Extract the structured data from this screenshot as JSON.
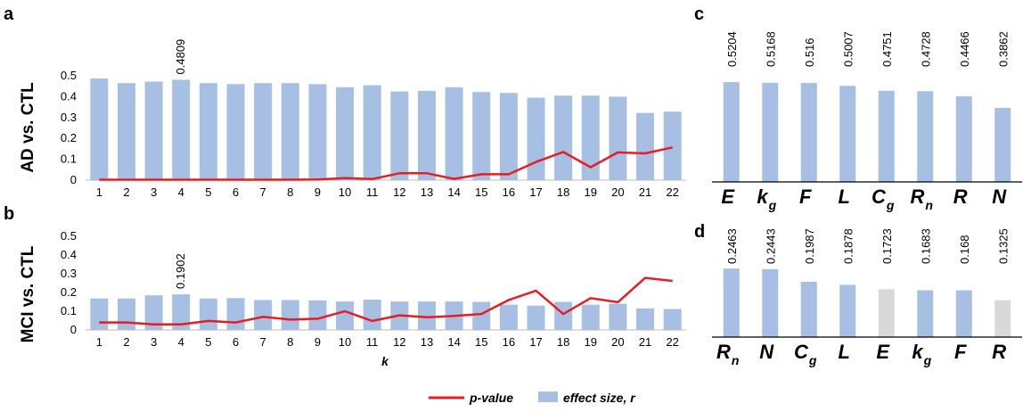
{
  "panels": {
    "a": {
      "letter": "a",
      "ylabel": "AD vs. CTL"
    },
    "b": {
      "letter": "b",
      "ylabel": "MCI vs. CTL"
    },
    "c": {
      "letter": "c"
    },
    "d": {
      "letter": "d"
    }
  },
  "legend": {
    "pvalue": "p-value",
    "effect": "effect size, r"
  },
  "colors": {
    "bar": "#a7bfe3",
    "bar_gray": "#d9d9d9",
    "line": "#e31e24",
    "axis": "#000000"
  },
  "chart_data": [
    {
      "panel": "a",
      "type": "bar",
      "ylabel": "AD vs. CTL",
      "xlabel": "k",
      "ylim": [
        0,
        0.5
      ],
      "yticks": [
        0,
        0.1,
        0.2,
        0.3,
        0.4,
        0.5
      ],
      "categories": [
        "1",
        "2",
        "3",
        "4",
        "5",
        "6",
        "7",
        "8",
        "9",
        "10",
        "11",
        "12",
        "13",
        "14",
        "15",
        "16",
        "17",
        "18",
        "19",
        "20",
        "21",
        "22"
      ],
      "series": [
        {
          "name": "effect size, r",
          "type": "bar",
          "values": [
            0.487,
            0.465,
            0.472,
            0.4809,
            0.465,
            0.46,
            0.465,
            0.465,
            0.46,
            0.445,
            0.455,
            0.425,
            0.428,
            0.445,
            0.422,
            0.418,
            0.395,
            0.405,
            0.405,
            0.4,
            0.322,
            0.328
          ]
        },
        {
          "name": "p-value",
          "type": "line",
          "values": [
            0.002,
            0.002,
            0.002,
            0.002,
            0.002,
            0.002,
            0.002,
            0.002,
            0.003,
            0.01,
            0.005,
            0.033,
            0.033,
            0.006,
            0.028,
            0.028,
            0.087,
            0.135,
            0.062,
            0.133,
            0.128,
            0.157
          ]
        }
      ],
      "annotations": [
        {
          "category": "4",
          "text": "0.4809"
        }
      ]
    },
    {
      "panel": "b",
      "type": "bar",
      "ylabel": "MCI vs. CTL",
      "xlabel": "k",
      "ylim": [
        0,
        0.5
      ],
      "yticks": [
        0,
        0.1,
        0.2,
        0.3,
        0.4,
        0.5
      ],
      "categories": [
        "1",
        "2",
        "3",
        "4",
        "5",
        "6",
        "7",
        "8",
        "9",
        "10",
        "11",
        "12",
        "13",
        "14",
        "15",
        "16",
        "17",
        "18",
        "19",
        "20",
        "21",
        "22"
      ],
      "series": [
        {
          "name": "effect size, r",
          "type": "bar",
          "values": [
            0.168,
            0.168,
            0.185,
            0.1902,
            0.168,
            0.17,
            0.16,
            0.16,
            0.158,
            0.152,
            0.162,
            0.152,
            0.152,
            0.152,
            0.15,
            0.135,
            0.13,
            0.15,
            0.135,
            0.14,
            0.115,
            0.112
          ]
        },
        {
          "name": "p-value",
          "type": "line",
          "values": [
            0.04,
            0.04,
            0.03,
            0.03,
            0.048,
            0.04,
            0.07,
            0.055,
            0.06,
            0.1,
            0.048,
            0.078,
            0.068,
            0.075,
            0.085,
            0.16,
            0.21,
            0.085,
            0.17,
            0.148,
            0.278,
            0.262
          ]
        }
      ],
      "annotations": [
        {
          "category": "4",
          "text": "0.1902"
        }
      ]
    },
    {
      "panel": "c",
      "type": "bar",
      "categories": [
        {
          "main": "E",
          "sub": ""
        },
        {
          "main": "k",
          "sub": "g"
        },
        {
          "main": "F",
          "sub": ""
        },
        {
          "main": "L",
          "sub": ""
        },
        {
          "main": "C",
          "sub": "g"
        },
        {
          "main": "R",
          "sub": "n"
        },
        {
          "main": "R",
          "sub": ""
        },
        {
          "main": "N",
          "sub": ""
        }
      ],
      "values": [
        0.5204,
        0.5168,
        0.516,
        0.5007,
        0.4751,
        0.4728,
        0.4466,
        0.3862
      ],
      "labels": [
        "0.5204",
        "0.5168",
        "0.516",
        "0.5007",
        "0.4751",
        "0.4728",
        "0.4466",
        "0.3862"
      ],
      "gray": [
        false,
        false,
        false,
        false,
        false,
        false,
        false,
        false
      ]
    },
    {
      "panel": "d",
      "type": "bar",
      "categories": [
        {
          "main": "R",
          "sub": "n"
        },
        {
          "main": "N",
          "sub": ""
        },
        {
          "main": "C",
          "sub": "g"
        },
        {
          "main": "L",
          "sub": ""
        },
        {
          "main": "E",
          "sub": ""
        },
        {
          "main": "k",
          "sub": "g"
        },
        {
          "main": "F",
          "sub": ""
        },
        {
          "main": "R",
          "sub": ""
        }
      ],
      "values": [
        0.2463,
        0.2443,
        0.1987,
        0.1878,
        0.1723,
        0.1683,
        0.168,
        0.1325
      ],
      "labels": [
        "0.2463",
        "0.2443",
        "0.1987",
        "0.1878",
        "0.1723",
        "0.1683",
        "0.168",
        "0.1325"
      ],
      "gray": [
        false,
        false,
        false,
        false,
        true,
        false,
        false,
        true
      ]
    }
  ]
}
